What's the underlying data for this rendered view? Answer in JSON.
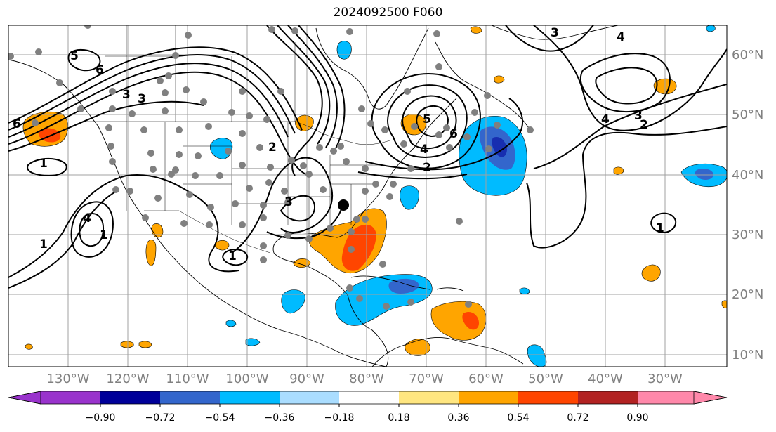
{
  "title": "2024092500 F060",
  "longitude_labels": [
    "130°W",
    "120°W",
    "110°W",
    "100°W",
    "90°W",
    "80°W",
    "70°W",
    "60°W",
    "50°W",
    "40°W",
    "30°W"
  ],
  "latitude_labels": [
    "60°N",
    "50°N",
    "40°N",
    "30°N",
    "20°N",
    "10°N"
  ],
  "colorbar": {
    "colors": [
      "#9933cc",
      "#000099",
      "#3366cc",
      "#00bbff",
      "#aaddff",
      "#ffffff",
      "#ffe680",
      "#ffa500",
      "#ff4500",
      "#b22222",
      "#ff88aa"
    ],
    "ticks": [
      "−0.90",
      "−0.72",
      "−0.54",
      "−0.36",
      "−0.18",
      "0.18",
      "0.36",
      "0.54",
      "0.72",
      "0.90"
    ]
  },
  "contour_labels": [
    "5",
    "6",
    "6",
    "3",
    "3",
    "1",
    "4",
    "2",
    "1",
    "3",
    "1",
    "5",
    "6",
    "4",
    "2",
    "4",
    "3",
    "4",
    "3",
    "2",
    "1",
    "1"
  ],
  "colors": {
    "grid": "#a0a0a0",
    "station": "#808080",
    "contour": "#000000",
    "positive_light": "#ffa500",
    "positive_strong": "#ff4500",
    "negative_light": "#00bbff",
    "negative_strong": "#3366cc",
    "negative_core": "#000099"
  },
  "marker": "black-dot"
}
